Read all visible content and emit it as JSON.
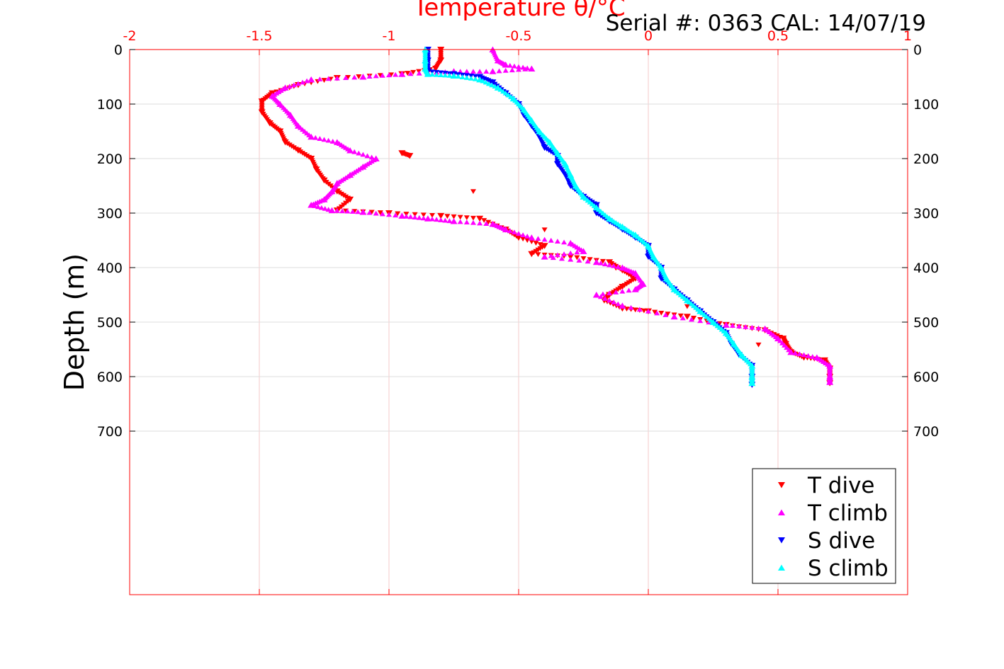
{
  "chart_data": {
    "type": "scatter",
    "title": "Serial #: 0363  CAL: 14/07/19",
    "xlabel": "Temperature θ/°C",
    "ylabel": "Depth (m)",
    "xlim": [
      -2,
      1
    ],
    "ylim": [
      0,
      1000
    ],
    "y_reversed": true,
    "x_ticks": [
      "-2",
      "-1.5",
      "-1",
      "-0.5",
      "0",
      "0.5",
      "1"
    ],
    "y_ticks": [
      "0",
      "100",
      "200",
      "300",
      "400",
      "500",
      "600",
      "700"
    ],
    "grid": true,
    "legend_position": "bottom-right",
    "colors": {
      "axis_top": "#ff0000",
      "grid": "#f4c9c9",
      "t_dive": "#ff0000",
      "t_climb": "#ff00ff",
      "s_dive": "#0000ff",
      "s_climb": "#00ffff"
    },
    "series": [
      {
        "name": "T dive",
        "marker": "triangle-down",
        "color": "#ff0000",
        "points": [
          [
            -0.8,
            0
          ],
          [
            -0.8,
            20
          ],
          [
            -0.82,
            35
          ],
          [
            -0.95,
            45
          ],
          [
            -1.2,
            52
          ],
          [
            -1.35,
            65
          ],
          [
            -1.45,
            80
          ],
          [
            -1.49,
            95
          ],
          [
            -1.49,
            115
          ],
          [
            -1.46,
            135
          ],
          [
            -1.42,
            150
          ],
          [
            -1.4,
            170
          ],
          [
            -1.35,
            185
          ],
          [
            -1.3,
            200
          ],
          [
            -1.28,
            220
          ],
          [
            -1.25,
            240
          ],
          [
            -1.2,
            260
          ],
          [
            -1.15,
            275
          ],
          [
            -1.2,
            295
          ],
          [
            -1.0,
            300
          ],
          [
            -0.8,
            305
          ],
          [
            -0.65,
            310
          ],
          [
            -0.55,
            330
          ],
          [
            -0.5,
            345
          ],
          [
            -0.4,
            360
          ],
          [
            -0.45,
            375
          ],
          [
            -0.3,
            380
          ],
          [
            -0.15,
            390
          ],
          [
            -0.1,
            405
          ],
          [
            -0.05,
            420
          ],
          [
            -0.1,
            435
          ],
          [
            -0.15,
            450
          ],
          [
            -0.17,
            460
          ],
          [
            -0.1,
            475
          ],
          [
            0.0,
            480
          ],
          [
            0.15,
            490
          ],
          [
            0.3,
            505
          ],
          [
            0.45,
            515
          ],
          [
            0.52,
            530
          ],
          [
            0.53,
            540
          ],
          [
            0.55,
            555
          ],
          [
            0.6,
            565
          ],
          [
            0.68,
            570
          ],
          [
            0.7,
            585
          ],
          [
            0.7,
            600
          ],
          [
            0.7,
            612
          ],
          [
            -0.95,
            190
          ],
          [
            -0.92,
            195
          ]
        ]
      },
      {
        "name": "T climb",
        "marker": "triangle-up",
        "color": "#ff00ff",
        "points": [
          [
            -0.6,
            0
          ],
          [
            -0.58,
            20
          ],
          [
            -0.55,
            28
          ],
          [
            -0.45,
            35
          ],
          [
            -0.6,
            40
          ],
          [
            -0.75,
            40
          ],
          [
            -0.95,
            45
          ],
          [
            -1.1,
            50
          ],
          [
            -1.3,
            55
          ],
          [
            -1.4,
            70
          ],
          [
            -1.45,
            85
          ],
          [
            -1.42,
            100
          ],
          [
            -1.38,
            120
          ],
          [
            -1.35,
            140
          ],
          [
            -1.3,
            160
          ],
          [
            -1.2,
            170
          ],
          [
            -1.15,
            185
          ],
          [
            -1.05,
            200
          ],
          [
            -1.1,
            215
          ],
          [
            -1.15,
            230
          ],
          [
            -1.2,
            245
          ],
          [
            -1.22,
            260
          ],
          [
            -1.25,
            275
          ],
          [
            -1.3,
            285
          ],
          [
            -1.22,
            295
          ],
          [
            -1.1,
            298
          ],
          [
            -0.95,
            305
          ],
          [
            -0.85,
            310
          ],
          [
            -0.75,
            315
          ],
          [
            -0.6,
            320
          ],
          [
            -0.55,
            330
          ],
          [
            -0.45,
            345
          ],
          [
            -0.3,
            355
          ],
          [
            -0.25,
            370
          ],
          [
            -0.4,
            380
          ],
          [
            -0.2,
            390
          ],
          [
            -0.1,
            400
          ],
          [
            -0.05,
            410
          ],
          [
            -0.02,
            430
          ],
          [
            -0.05,
            440
          ],
          [
            -0.2,
            450
          ],
          [
            -0.1,
            470
          ],
          [
            0.1,
            490
          ],
          [
            0.3,
            505
          ],
          [
            0.45,
            512
          ],
          [
            0.5,
            530
          ],
          [
            0.55,
            555
          ],
          [
            0.65,
            565
          ],
          [
            0.7,
            580
          ],
          [
            0.7,
            600
          ],
          [
            0.7,
            610
          ]
        ]
      },
      {
        "name": "S dive",
        "marker": "triangle-down",
        "color": "#0000ff",
        "points": [
          [
            -0.85,
            0
          ],
          [
            -0.85,
            20
          ],
          [
            -0.85,
            40
          ],
          [
            -0.75,
            45
          ],
          [
            -0.65,
            50
          ],
          [
            -0.6,
            60
          ],
          [
            -0.55,
            80
          ],
          [
            -0.5,
            100
          ],
          [
            -0.48,
            120
          ],
          [
            -0.45,
            140
          ],
          [
            -0.42,
            160
          ],
          [
            -0.4,
            180
          ],
          [
            -0.35,
            195
          ],
          [
            -0.35,
            210
          ],
          [
            -0.32,
            230
          ],
          [
            -0.3,
            250
          ],
          [
            -0.25,
            270
          ],
          [
            -0.2,
            285
          ],
          [
            -0.2,
            300
          ],
          [
            -0.15,
            315
          ],
          [
            -0.1,
            330
          ],
          [
            -0.05,
            345
          ],
          [
            0.0,
            360
          ],
          [
            0.0,
            380
          ],
          [
            0.05,
            400
          ],
          [
            0.05,
            420
          ],
          [
            0.1,
            440
          ],
          [
            0.15,
            460
          ],
          [
            0.2,
            480
          ],
          [
            0.25,
            500
          ],
          [
            0.3,
            520
          ],
          [
            0.32,
            540
          ],
          [
            0.35,
            560
          ],
          [
            0.4,
            580
          ],
          [
            0.4,
            600
          ],
          [
            0.4,
            615
          ]
        ]
      },
      {
        "name": "S climb",
        "marker": "triangle-up",
        "color": "#00ffff",
        "points": [
          [
            -0.86,
            0
          ],
          [
            -0.86,
            20
          ],
          [
            -0.86,
            35
          ],
          [
            -0.85,
            45
          ],
          [
            -0.75,
            48
          ],
          [
            -0.65,
            55
          ],
          [
            -0.58,
            70
          ],
          [
            -0.52,
            90
          ],
          [
            -0.48,
            110
          ],
          [
            -0.45,
            130
          ],
          [
            -0.42,
            150
          ],
          [
            -0.38,
            170
          ],
          [
            -0.35,
            190
          ],
          [
            -0.32,
            210
          ],
          [
            -0.3,
            230
          ],
          [
            -0.28,
            250
          ],
          [
            -0.25,
            270
          ],
          [
            -0.2,
            290
          ],
          [
            -0.15,
            310
          ],
          [
            -0.1,
            325
          ],
          [
            -0.05,
            340
          ],
          [
            0.0,
            360
          ],
          [
            0.02,
            380
          ],
          [
            0.05,
            400
          ],
          [
            0.07,
            420
          ],
          [
            0.1,
            440
          ],
          [
            0.15,
            460
          ],
          [
            0.2,
            480
          ],
          [
            0.25,
            500
          ],
          [
            0.3,
            520
          ],
          [
            0.33,
            540
          ],
          [
            0.36,
            560
          ],
          [
            0.4,
            580
          ],
          [
            0.4,
            600
          ],
          [
            0.4,
            612
          ]
        ]
      }
    ]
  }
}
